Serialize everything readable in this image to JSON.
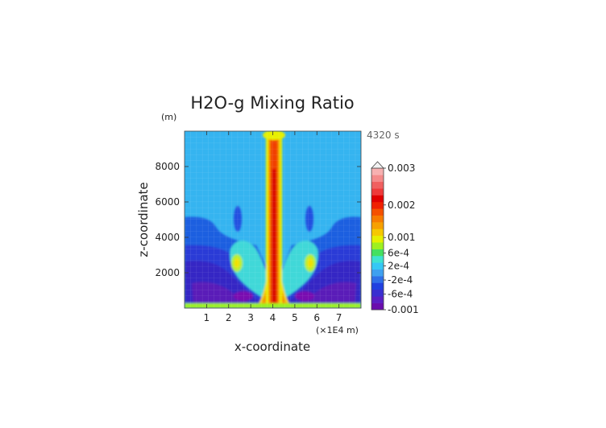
{
  "chart_data": {
    "type": "heatmap",
    "title": "H2O-g Mixing Ratio",
    "time_label": "4320 s",
    "xlabel": "x-coordinate",
    "x_unit_label": "(×1E4 m)",
    "ylabel": "z-coordinate",
    "y_unit_label": "(m)",
    "xlim": [
      0,
      8
    ],
    "ylim": [
      0,
      10000
    ],
    "x_ticks": [
      "1",
      "2",
      "3",
      "4",
      "5",
      "6",
      "7"
    ],
    "y_ticks": [
      "2000",
      "4000",
      "6000",
      "8000"
    ],
    "colorbar": {
      "labels": [
        "0.003",
        "0.002",
        "0.001",
        "6e-4",
        "2e-4",
        "-2e-4",
        "-6e-4",
        "-0.001"
      ],
      "min": -0.001,
      "max": 0.003,
      "extend": "max",
      "colors": [
        "#6a0dad",
        "#5a1fc4",
        "#3a2fd0",
        "#2040e0",
        "#2f6fe8",
        "#3fa0f0",
        "#35c8f5",
        "#3ee3d0",
        "#44e060",
        "#9ef020",
        "#e6f000",
        "#f6c800",
        "#f7a000",
        "#f77b00",
        "#f55000",
        "#f02000",
        "#e00000",
        "#ee3a3a",
        "#f06060",
        "#f48a8a",
        "#f7b0b0"
      ],
      "label_values": [
        0.003,
        0.002,
        0.001,
        0.0006,
        0.0002,
        -0.0002,
        -0.0006,
        -0.001
      ]
    }
  }
}
